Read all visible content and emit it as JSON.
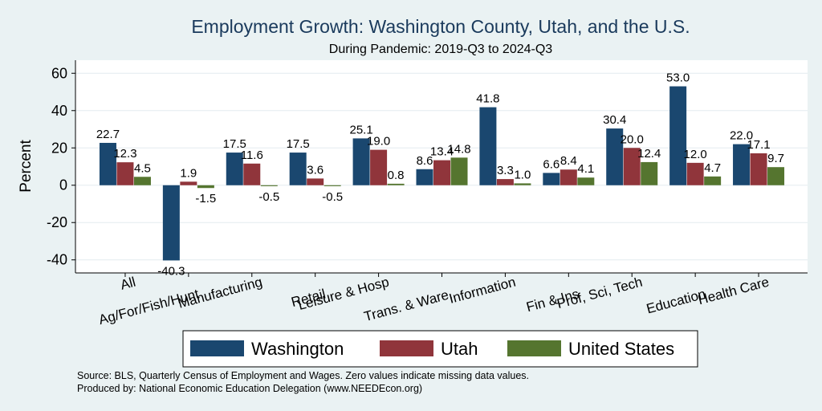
{
  "chart_data": {
    "type": "bar",
    "title": "Employment Growth: Washington County, Utah, and the U.S.",
    "subtitle": "During Pandemic: 2019-Q3 to 2024-Q3",
    "ylabel": "Percent",
    "xlabel": "",
    "ylim": [
      -47,
      67
    ],
    "yticks": [
      -40,
      -20,
      0,
      20,
      40,
      60
    ],
    "categories": [
      "All",
      "Ag/For/Fish/Hunt",
      "Manufacturing",
      "Retail",
      "Leisure & Hosp",
      "Trans. & Ware.",
      "Information",
      "Fin & Ins",
      "Prof, Sci, Tech",
      "Education",
      "Health Care"
    ],
    "series": [
      {
        "name": "Washington",
        "color": "#1a476f",
        "values": [
          22.7,
          -40.3,
          17.5,
          17.5,
          25.1,
          8.6,
          41.8,
          6.6,
          30.4,
          53.0,
          22.0
        ]
      },
      {
        "name": "Utah",
        "color": "#90353b",
        "values": [
          12.3,
          1.9,
          11.6,
          3.6,
          19.0,
          13.4,
          3.3,
          8.4,
          20.0,
          12.0,
          17.1
        ]
      },
      {
        "name": "United States",
        "color": "#55752f",
        "values": [
          4.5,
          -1.5,
          -0.5,
          -0.5,
          0.8,
          14.8,
          1.0,
          4.1,
          12.4,
          4.7,
          9.7
        ]
      }
    ],
    "grid": true,
    "legend_position": "bottom",
    "notes": [
      "Source: BLS, Quarterly Census of Employment and Wages. Zero values indicate missing data values.",
      "Produced by: National Economic Education Delegation (www.NEEDEcon.org)"
    ]
  }
}
